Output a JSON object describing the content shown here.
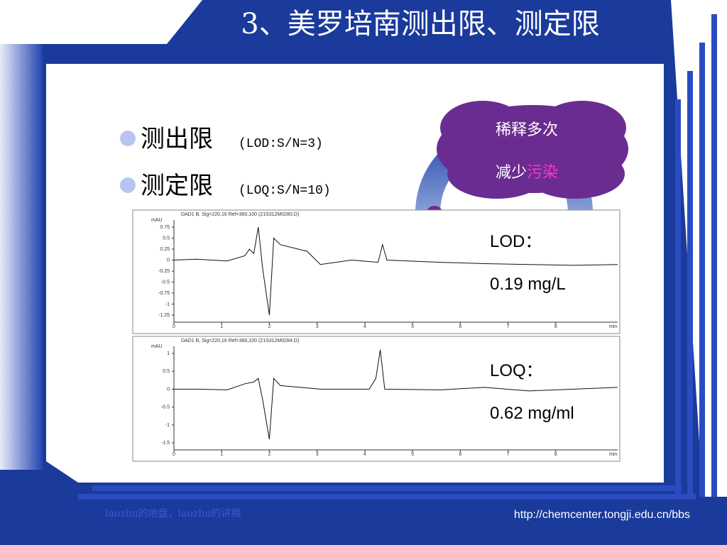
{
  "title": "3、美罗培南测出限、测定限",
  "bullets": [
    {
      "term": "测出限",
      "note": "(LOD:S/N=3)"
    },
    {
      "term": "测定限",
      "note": "(LOQ:S/N=10)"
    }
  ],
  "cloud": {
    "line1": "稀释多次",
    "line2_plain": "减少",
    "line2_highlight": "污染"
  },
  "results": [
    {
      "label": "LOD：",
      "value": "0.19 mg/L"
    },
    {
      "label": "LOQ：",
      "value": "0.62 mg/ml"
    }
  ],
  "chromatograms": [
    {
      "header": "DAD1 B, Sig=220,16 Ref=360,100 (21S312M0280.D)",
      "unit": "mAU",
      "yticks": [
        "0.75",
        "0.5",
        "0.25",
        "0",
        "-0.25",
        "-0.5",
        "-0.75",
        "-1",
        "-1.25"
      ],
      "xticks": [
        "0",
        "1",
        "2",
        "3",
        "4",
        "5",
        "6",
        "7",
        "8"
      ],
      "xunit": "min"
    },
    {
      "header": "DAD1 B, Sig=220,16 Ref=360,100 (21S312M0284.D)",
      "unit": "mAU",
      "yticks": [
        "1",
        "0.5",
        "0",
        "-0.5",
        "-1",
        "-1.5"
      ],
      "xticks": [
        "0",
        "1",
        "2",
        "3",
        "4",
        "5",
        "6",
        "7",
        "8"
      ],
      "xunit": "min"
    }
  ],
  "footer": {
    "left": "laozhu的地盘，laozhu的讲稿",
    "right": "http://chemcenter.tongji.edu.cn/bbs"
  }
}
